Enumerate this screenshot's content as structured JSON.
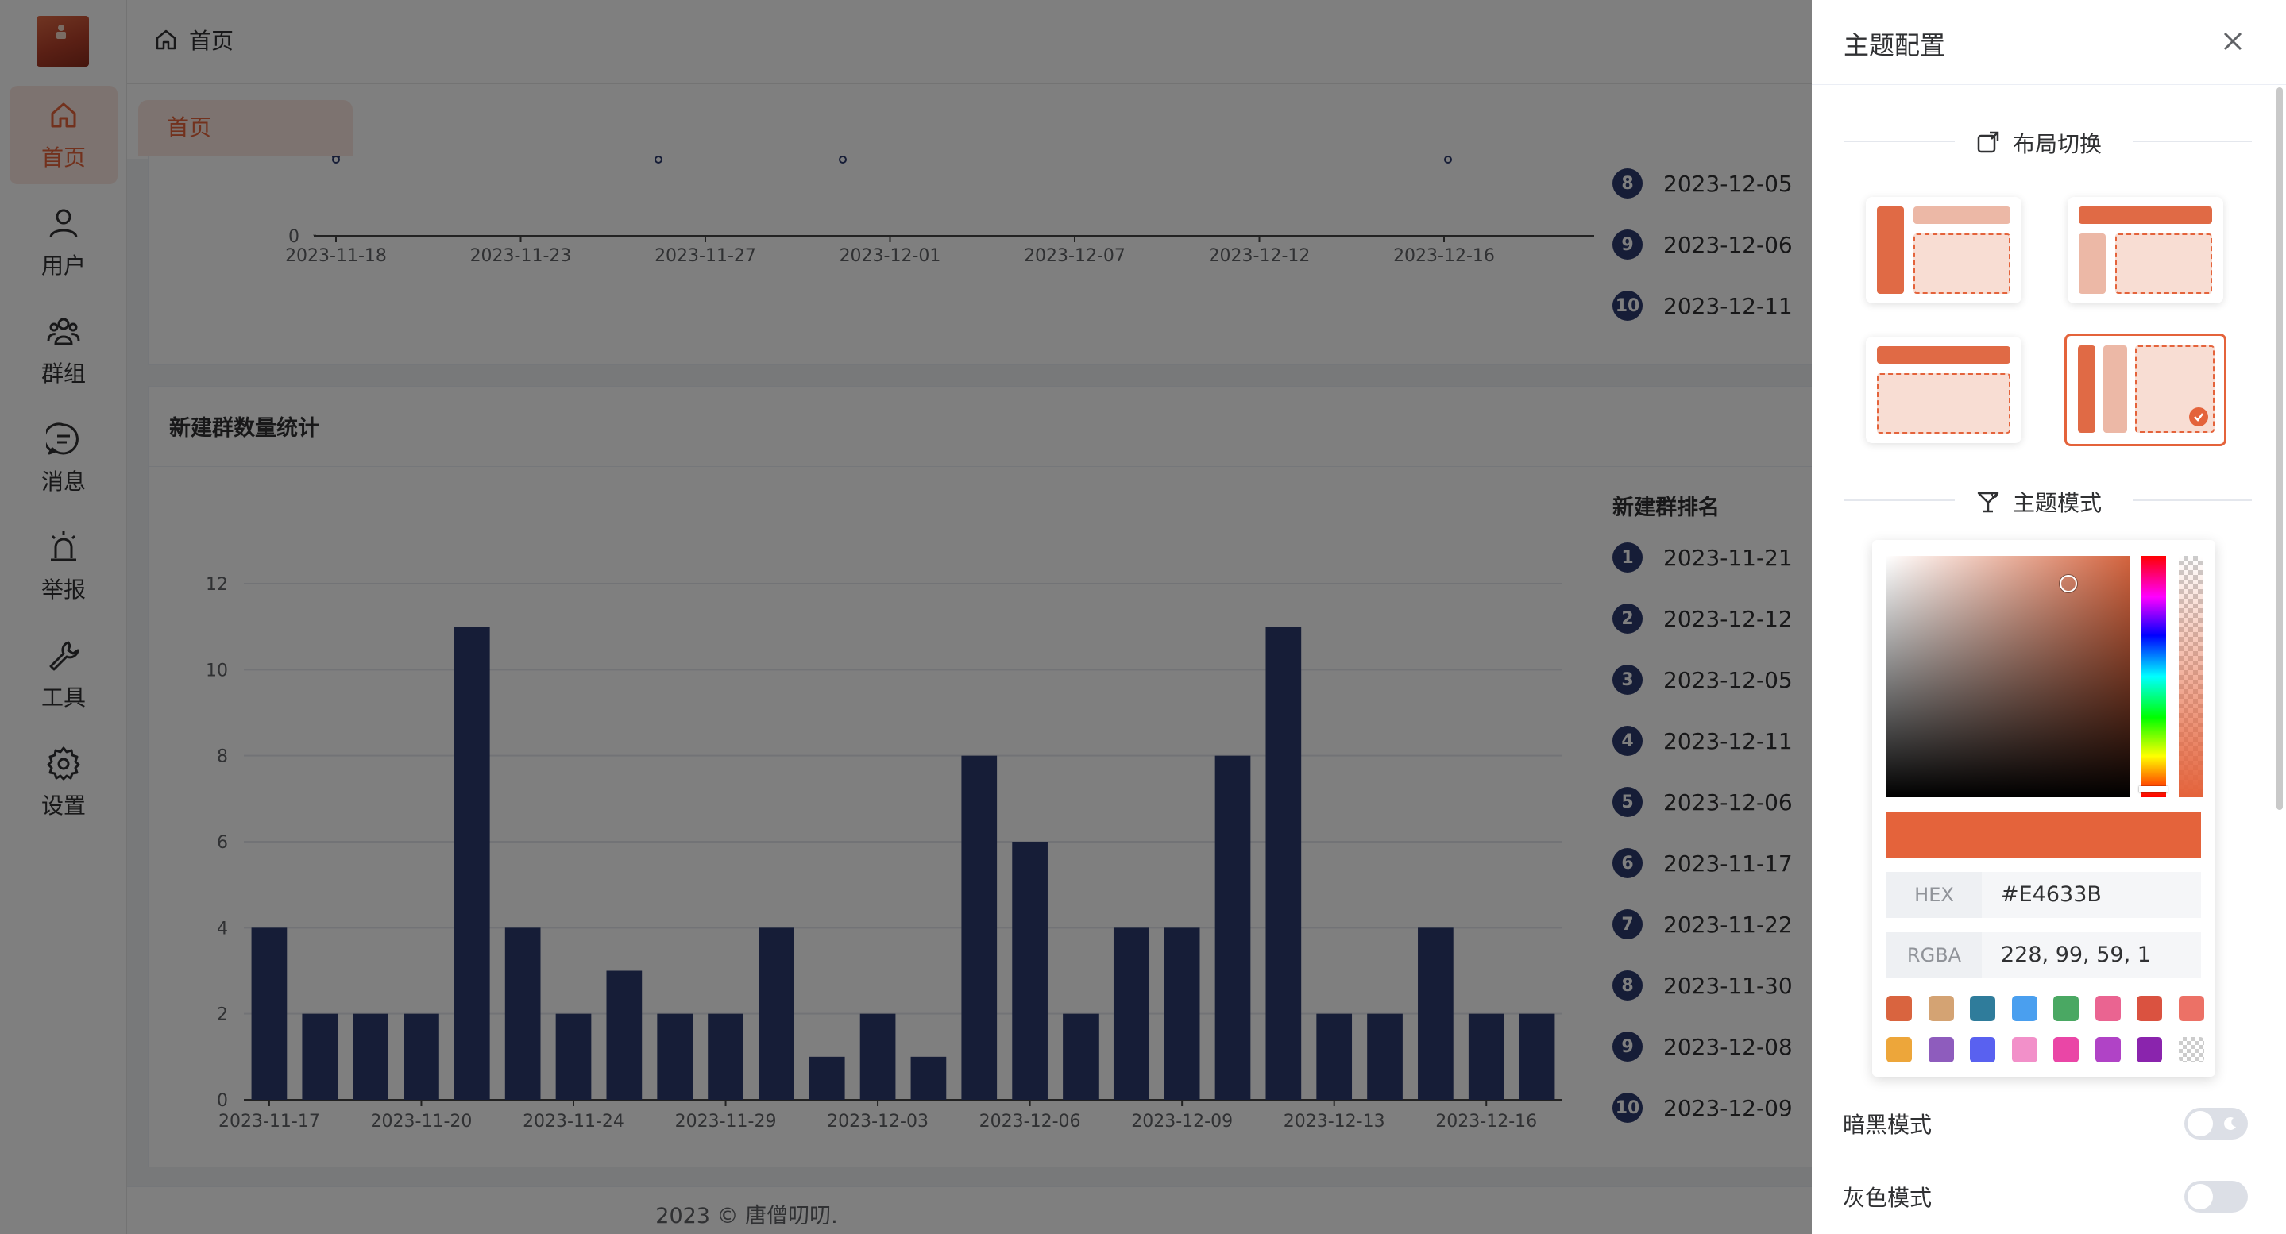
{
  "sidebar": {
    "items": [
      {
        "label": "首页",
        "icon": "home-icon"
      },
      {
        "label": "用户",
        "icon": "user-icon"
      },
      {
        "label": "群组",
        "icon": "group-icon"
      },
      {
        "label": "消息",
        "icon": "message-icon"
      },
      {
        "label": "举报",
        "icon": "alarm-icon"
      },
      {
        "label": "工具",
        "icon": "wrench-icon"
      },
      {
        "label": "设置",
        "icon": "gear-icon"
      }
    ]
  },
  "header": {
    "breadcrumb": "首页"
  },
  "tabs": [
    {
      "label": "首页"
    }
  ],
  "top_card": {
    "ranking": [
      {
        "rank": "8",
        "date": "2023-12-05"
      },
      {
        "rank": "9",
        "date": "2023-12-06"
      },
      {
        "rank": "10",
        "date": "2023-12-11"
      }
    ]
  },
  "top_chart_data": {
    "type": "line",
    "x_ticks": [
      "2023-11-18",
      "2023-11-23",
      "2023-11-27",
      "2023-12-01",
      "2023-12-07",
      "2023-12-12",
      "2023-12-16"
    ],
    "y_ticks_visible": [
      "0"
    ]
  },
  "group_card": {
    "title": "新建群数量统计",
    "ranking_title": "新建群排名",
    "ranking": [
      {
        "rank": "1",
        "date": "2023-11-21"
      },
      {
        "rank": "2",
        "date": "2023-12-12"
      },
      {
        "rank": "3",
        "date": "2023-12-05"
      },
      {
        "rank": "4",
        "date": "2023-12-11"
      },
      {
        "rank": "5",
        "date": "2023-12-06"
      },
      {
        "rank": "6",
        "date": "2023-11-17"
      },
      {
        "rank": "7",
        "date": "2023-11-22"
      },
      {
        "rank": "8",
        "date": "2023-11-30"
      },
      {
        "rank": "9",
        "date": "2023-12-08"
      },
      {
        "rank": "10",
        "date": "2023-12-09"
      }
    ]
  },
  "chart_data": {
    "type": "bar",
    "title": "",
    "xlabel": "",
    "ylabel": "",
    "ylim": [
      0,
      12
    ],
    "y_ticks": [
      0,
      2,
      4,
      6,
      8,
      10,
      12
    ],
    "x_tick_labels": [
      "2023-11-17",
      "2023-11-20",
      "2023-11-24",
      "2023-11-29",
      "2023-12-03",
      "2023-12-06",
      "2023-12-09",
      "2023-12-13",
      "2023-12-16"
    ],
    "values": [
      4,
      2,
      2,
      2,
      11,
      4,
      2,
      3,
      2,
      2,
      4,
      1,
      2,
      1,
      8,
      6,
      2,
      4,
      4,
      8,
      11,
      2,
      2,
      4,
      2,
      2
    ],
    "bar_color": "#2d3a6e",
    "grid": true
  },
  "footer": {
    "text": "2023 © 唐僧叨叨."
  },
  "drawer": {
    "title": "主题配置",
    "layout_section": "布局切换",
    "theme_section": "主题模式",
    "color_picker": {
      "hex_label": "HEX",
      "hex_value": "#E4633B",
      "rgba_label": "RGBA",
      "rgba_value": "228, 99, 59, 1",
      "swatches_row1": [
        "#d9643f",
        "#d4a373",
        "#2f7c9b",
        "#4a9fef",
        "#4aa863",
        "#ea6491",
        "#da5240",
        "#ec7166"
      ],
      "swatches_row2": [
        "#eda63a",
        "#8e5cbd",
        "#5961f0",
        "#f290c9",
        "#ea46a6",
        "#b043c6",
        "#8a24ad",
        "transparent"
      ]
    },
    "dark_mode_label": "暗黑模式",
    "gray_mode_label": "灰色模式"
  },
  "accent_color": "#E4633B"
}
